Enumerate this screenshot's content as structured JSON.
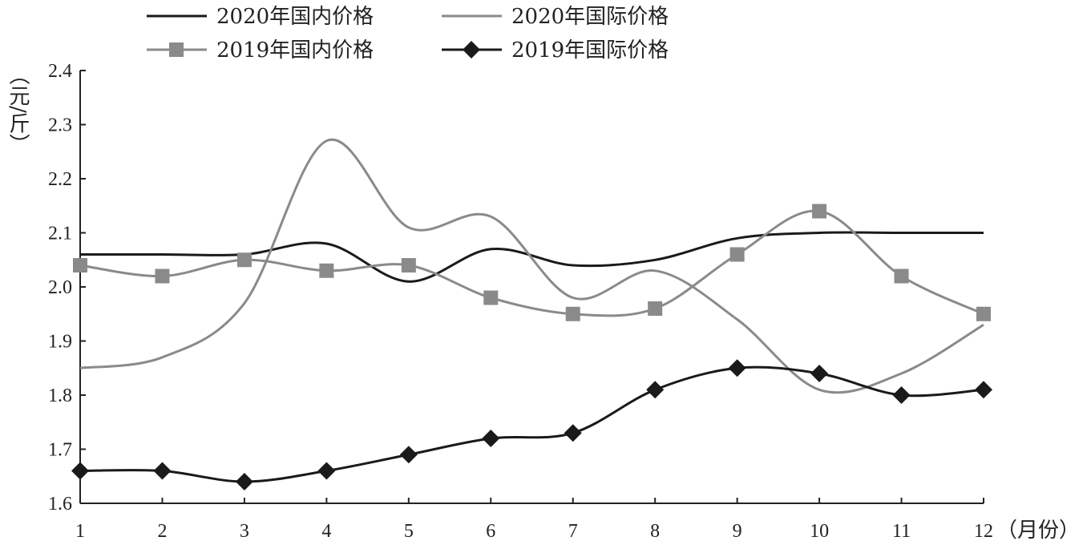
{
  "chart_data": {
    "type": "line",
    "title": "",
    "ylabel": "（元/斤）",
    "xlabel": "（月份）",
    "categories": [
      "1",
      "2",
      "3",
      "4",
      "5",
      "6",
      "7",
      "8",
      "9",
      "10",
      "11",
      "12"
    ],
    "ylim": [
      1.6,
      2.4
    ],
    "yticks": [
      "1.6",
      "1.7",
      "1.8",
      "1.9",
      "2.0",
      "2.1",
      "2.2",
      "2.3",
      "2.4"
    ],
    "grid": false,
    "legend_position": "top",
    "series": [
      {
        "name": "2020年国内价格",
        "color": "#1a1a1a",
        "marker": "none",
        "values": [
          2.06,
          2.06,
          2.06,
          2.08,
          2.01,
          2.07,
          2.04,
          2.05,
          2.09,
          2.1,
          2.1,
          2.1
        ]
      },
      {
        "name": "2020年国际价格",
        "color": "#8a8a8a",
        "marker": "none",
        "values": [
          1.85,
          1.87,
          1.97,
          2.27,
          2.11,
          2.13,
          1.98,
          2.03,
          1.94,
          1.81,
          1.84,
          1.93
        ]
      },
      {
        "name": "2019年国内价格",
        "color": "#8a8a8a",
        "marker": "square",
        "values": [
          2.04,
          2.02,
          2.05,
          2.03,
          2.04,
          1.98,
          1.95,
          1.96,
          2.06,
          2.14,
          2.02,
          1.95
        ]
      },
      {
        "name": "2019年国际价格",
        "color": "#1a1a1a",
        "marker": "diamond",
        "values": [
          1.66,
          1.66,
          1.64,
          1.66,
          1.69,
          1.72,
          1.73,
          1.81,
          1.85,
          1.84,
          1.8,
          1.81
        ]
      }
    ]
  }
}
